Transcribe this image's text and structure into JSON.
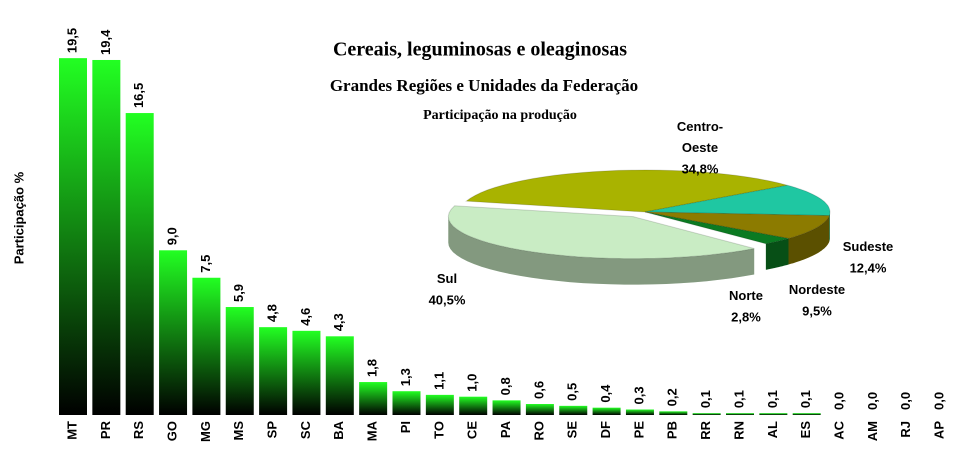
{
  "chart_data": [
    {
      "type": "bar",
      "title": "Cereais, leguminosas e oleaginosas",
      "subtitle": "Grandes Regiões e Unidades da Federação",
      "ylabel": "Participação %",
      "categories": [
        "MT",
        "PR",
        "RS",
        "GO",
        "MG",
        "MS",
        "SP",
        "SC",
        "BA",
        "MA",
        "PI",
        "TO",
        "CE",
        "PA",
        "RO",
        "SE",
        "DF",
        "PE",
        "PB",
        "RR",
        "RN",
        "AL",
        "ES",
        "AC",
        "AM",
        "RJ",
        "AP"
      ],
      "values": [
        19.5,
        19.4,
        16.5,
        9.0,
        7.5,
        5.9,
        4.8,
        4.6,
        4.3,
        1.8,
        1.3,
        1.1,
        1.0,
        0.8,
        0.6,
        0.5,
        0.4,
        0.3,
        0.2,
        0.1,
        0.1,
        0.1,
        0.1,
        0.0,
        0.0,
        0.0,
        0.0
      ],
      "value_labels": [
        "19,5",
        "19,4",
        "16,5",
        "9,0",
        "7,5",
        "5,9",
        "4,8",
        "4,6",
        "4,3",
        "1,8",
        "1,3",
        "1,1",
        "1,0",
        "0,8",
        "0,6",
        "0,5",
        "0,4",
        "0,3",
        "0,2",
        "0,1",
        "0,1",
        "0,1",
        "0,1",
        "0,0",
        "0,0",
        "0,0",
        "0,0"
      ],
      "color": "#22ff22"
    },
    {
      "type": "pie",
      "title": "Participação na produção",
      "labels": [
        "Centro-Oeste",
        "Sudeste",
        "Nordeste",
        "Norte",
        "Sul"
      ],
      "values": [
        34.8,
        12.4,
        9.5,
        2.8,
        40.5
      ],
      "value_labels": [
        "34,8%",
        "12,4%",
        "9,5%",
        "2,8%",
        "40,5%"
      ],
      "colors": [
        "#a9b300",
        "#1fc7a2",
        "#8c7b00",
        "#0b7a22",
        "#c9ecc4"
      ]
    }
  ]
}
